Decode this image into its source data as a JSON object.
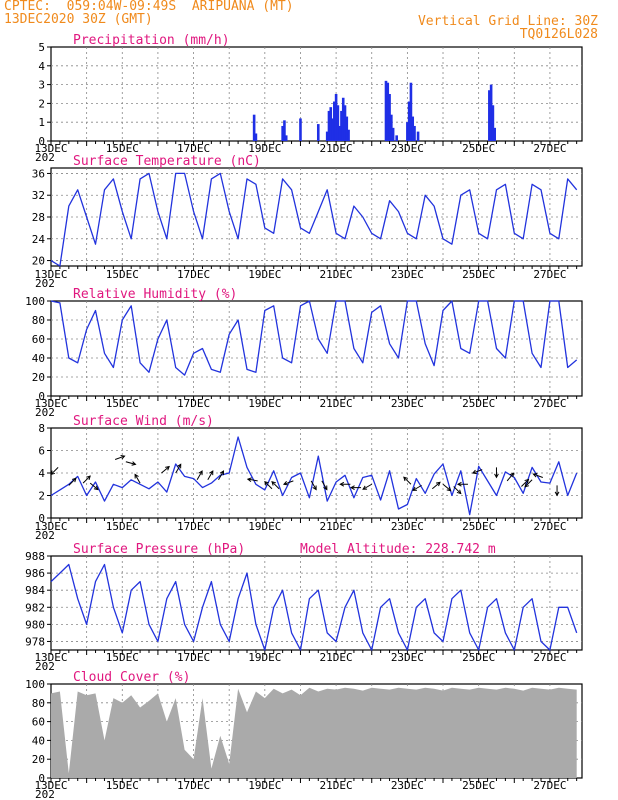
{
  "header": {
    "line1": "CPTEC:  059:04W-09:49S  ARIPUANA (MT)",
    "line2": "13DEC2020 30Z (GMT)",
    "grid_note": "Vertical Grid Line: 30Z",
    "code": "TQ0126L028"
  },
  "x_labels": [
    "13DEC",
    "15DEC",
    "17DEC",
    "19DEC",
    "21DEC",
    "23DEC",
    "25DEC",
    "27DEC"
  ],
  "year_label": "202",
  "colors": {
    "header": "#f08a1c",
    "title": "#e0177f",
    "line": "#2233dd",
    "bar": "#1f2fe6",
    "cloud": "#aaaaaa"
  },
  "chart_data": [
    {
      "id": "precip",
      "type": "bar",
      "title": "Precipitation (mm/h)",
      "ylim": [
        0,
        5
      ],
      "yticks": [
        0,
        1,
        2,
        3,
        4,
        5
      ],
      "x_unit": "days since 13DEC 06Z",
      "bars": [
        [
          5.7,
          1.4
        ],
        [
          5.75,
          0.4
        ],
        [
          6.5,
          0.8
        ],
        [
          6.55,
          1.1
        ],
        [
          6.6,
          0.3
        ],
        [
          7.0,
          1.2
        ],
        [
          7.5,
          0.9
        ],
        [
          7.75,
          0.5
        ],
        [
          7.8,
          1.6
        ],
        [
          7.85,
          1.8
        ],
        [
          7.9,
          1.2
        ],
        [
          7.95,
          2.1
        ],
        [
          8.0,
          2.5
        ],
        [
          8.05,
          1.9
        ],
        [
          8.1,
          0.8
        ],
        [
          8.15,
          1.6
        ],
        [
          8.2,
          2.3
        ],
        [
          8.25,
          1.9
        ],
        [
          8.3,
          1.3
        ],
        [
          8.35,
          0.6
        ],
        [
          9.4,
          3.2
        ],
        [
          9.45,
          3.1
        ],
        [
          9.5,
          2.5
        ],
        [
          9.55,
          1.4
        ],
        [
          9.6,
          0.7
        ],
        [
          9.7,
          0.3
        ],
        [
          10.0,
          1.0
        ],
        [
          10.05,
          2.1
        ],
        [
          10.1,
          3.1
        ],
        [
          10.15,
          1.3
        ],
        [
          10.2,
          0.8
        ],
        [
          10.3,
          0.5
        ],
        [
          12.3,
          2.7
        ],
        [
          12.35,
          3.0
        ],
        [
          12.4,
          1.9
        ],
        [
          12.45,
          0.7
        ]
      ]
    },
    {
      "id": "temp",
      "type": "line",
      "title": "Surface Temperature (nC)",
      "ylim": [
        19,
        37
      ],
      "yticks": [
        20,
        24,
        28,
        32,
        36
      ],
      "x": [
        0,
        0.25,
        0.5,
        0.75,
        1,
        1.25,
        1.5,
        1.75,
        2,
        2.25,
        2.5,
        2.75,
        3,
        3.25,
        3.5,
        3.75,
        4,
        4.25,
        4.5,
        4.75,
        5,
        5.25,
        5.5,
        5.75,
        6,
        6.25,
        6.5,
        6.75,
        7,
        7.25,
        7.5,
        7.75,
        8,
        8.25,
        8.5,
        8.75,
        9,
        9.25,
        9.5,
        9.75,
        10,
        10.25,
        10.5,
        10.75,
        11,
        11.25,
        11.5,
        11.75,
        12,
        12.25,
        12.5,
        12.75,
        13,
        13.25,
        13.5,
        13.75,
        14,
        14.25,
        14.5,
        14.75
      ],
      "values": [
        20,
        19,
        30,
        33,
        28,
        23,
        33,
        35,
        29,
        24,
        35,
        36,
        29,
        24,
        36,
        36,
        29,
        24,
        35,
        36,
        29,
        24,
        35,
        34,
        26,
        25,
        35,
        33,
        26,
        25,
        29,
        33,
        25,
        24,
        30,
        28,
        25,
        24,
        31,
        29,
        25,
        24,
        32,
        30,
        24,
        23,
        32,
        33,
        25,
        24,
        33,
        34,
        25,
        24,
        34,
        33,
        25,
        24,
        35,
        33
      ]
    },
    {
      "id": "rh",
      "type": "line",
      "title": "Relative Humidity (%)",
      "ylim": [
        0,
        100
      ],
      "yticks": [
        0,
        20,
        40,
        60,
        80,
        100
      ],
      "x": [
        0,
        0.25,
        0.5,
        0.75,
        1,
        1.25,
        1.5,
        1.75,
        2,
        2.25,
        2.5,
        2.75,
        3,
        3.25,
        3.5,
        3.75,
        4,
        4.25,
        4.5,
        4.75,
        5,
        5.25,
        5.5,
        5.75,
        6,
        6.25,
        6.5,
        6.75,
        7,
        7.25,
        7.5,
        7.75,
        8,
        8.25,
        8.5,
        8.75,
        9,
        9.25,
        9.5,
        9.75,
        10,
        10.25,
        10.5,
        10.75,
        11,
        11.25,
        11.5,
        11.75,
        12,
        12.25,
        12.5,
        12.75,
        13,
        13.25,
        13.5,
        13.75,
        14,
        14.25,
        14.5,
        14.75
      ],
      "values": [
        100,
        98,
        40,
        35,
        70,
        90,
        45,
        30,
        80,
        95,
        35,
        25,
        60,
        80,
        30,
        22,
        45,
        50,
        28,
        25,
        65,
        80,
        28,
        25,
        90,
        95,
        40,
        35,
        95,
        100,
        60,
        45,
        100,
        100,
        50,
        35,
        88,
        95,
        55,
        40,
        100,
        100,
        55,
        32,
        90,
        100,
        50,
        45,
        100,
        100,
        50,
        40,
        100,
        100,
        45,
        30,
        100,
        100,
        30,
        38
      ]
    },
    {
      "id": "wind",
      "type": "line",
      "title": "Surface Wind (m/s)",
      "ylim": [
        0,
        8
      ],
      "yticks": [
        0,
        2,
        4,
        6,
        8
      ],
      "x": [
        0,
        0.25,
        0.5,
        0.75,
        1,
        1.25,
        1.5,
        1.75,
        2,
        2.25,
        2.5,
        2.75,
        3,
        3.25,
        3.5,
        3.75,
        4,
        4.25,
        4.5,
        4.75,
        5,
        5.25,
        5.5,
        5.75,
        6,
        6.25,
        6.5,
        6.75,
        7,
        7.25,
        7.5,
        7.75,
        8,
        8.25,
        8.5,
        8.75,
        9,
        9.25,
        9.5,
        9.75,
        10,
        10.25,
        10.5,
        10.75,
        11,
        11.25,
        11.5,
        11.75,
        12,
        12.25,
        12.5,
        12.75,
        13,
        13.25,
        13.5,
        13.75,
        14,
        14.25,
        14.5,
        14.75
      ],
      "values": [
        2,
        2.5,
        3,
        3.7,
        2,
        3.2,
        1.5,
        3.0,
        2.7,
        3.4,
        3,
        2.6,
        3.2,
        2.3,
        4.8,
        3.7,
        3.5,
        2.7,
        3.1,
        3.8,
        4,
        7.2,
        4.5,
        3.0,
        2.5,
        4.2,
        2.0,
        3.6,
        4,
        1.8,
        5.5,
        1.5,
        3.2,
        3.8,
        1.8,
        3.6,
        3.8,
        1.6,
        4.2,
        0.8,
        1.2,
        3.5,
        2.2,
        3.9,
        4.8,
        2.0,
        4.2,
        0.3,
        4.6,
        3.3,
        2.0,
        4.1,
        3.6,
        2.2,
        4.5,
        3.2,
        3.1,
        5.0,
        2.0,
        4.0
      ],
      "arrows": [
        [
          0.2,
          4.5,
          225
        ],
        [
          0.5,
          2.9,
          45
        ],
        [
          0.9,
          3.1,
          45
        ],
        [
          1.1,
          3.1,
          320
        ],
        [
          1.8,
          5.2,
          20
        ],
        [
          2.1,
          5.0,
          345
        ],
        [
          2.5,
          3.1,
          120
        ],
        [
          3.1,
          4.0,
          40
        ],
        [
          3.5,
          4.0,
          60
        ],
        [
          4.1,
          3.4,
          60
        ],
        [
          4.4,
          3.4,
          60
        ],
        [
          4.7,
          3.4,
          60
        ],
        [
          5.8,
          3.3,
          170
        ],
        [
          6.2,
          2.6,
          135
        ],
        [
          6.4,
          2.6,
          135
        ],
        [
          6.8,
          3.3,
          200
        ],
        [
          7.3,
          3.3,
          300
        ],
        [
          7.6,
          3.3,
          300
        ],
        [
          8.4,
          3.0,
          180
        ],
        [
          8.7,
          2.7,
          180
        ],
        [
          9.0,
          3.0,
          210
        ],
        [
          10.1,
          3.0,
          135
        ],
        [
          10.4,
          2.9,
          210
        ],
        [
          10.7,
          2.6,
          40
        ],
        [
          11.0,
          3.0,
          320
        ],
        [
          11.3,
          2.8,
          315
        ],
        [
          11.7,
          3.0,
          180
        ],
        [
          12.1,
          4.3,
          200
        ],
        [
          12.5,
          4.5,
          270
        ],
        [
          12.8,
          3.3,
          50
        ],
        [
          13.2,
          2.8,
          45
        ],
        [
          13.5,
          3.4,
          225
        ],
        [
          13.8,
          3.6,
          160
        ],
        [
          14.2,
          2.9,
          270
        ]
      ]
    },
    {
      "id": "pres",
      "type": "line",
      "title": "Surface Pressure (hPa)",
      "subtitle": "Model Altitude: 228.742 m",
      "ylim": [
        977,
        988
      ],
      "yticks": [
        978,
        980,
        982,
        984,
        986,
        988
      ],
      "x": [
        0,
        0.25,
        0.5,
        0.75,
        1,
        1.25,
        1.5,
        1.75,
        2,
        2.25,
        2.5,
        2.75,
        3,
        3.25,
        3.5,
        3.75,
        4,
        4.25,
        4.5,
        4.75,
        5,
        5.25,
        5.5,
        5.75,
        6,
        6.25,
        6.5,
        6.75,
        7,
        7.25,
        7.5,
        7.75,
        8,
        8.25,
        8.5,
        8.75,
        9,
        9.25,
        9.5,
        9.75,
        10,
        10.25,
        10.5,
        10.75,
        11,
        11.25,
        11.5,
        11.75,
        12,
        12.25,
        12.5,
        12.75,
        13,
        13.25,
        13.5,
        13.75,
        14,
        14.25,
        14.5,
        14.75
      ],
      "values": [
        985,
        986,
        987,
        983,
        980,
        985,
        987,
        982,
        979,
        984,
        985,
        980,
        978,
        983,
        985,
        980,
        978,
        982,
        985,
        980,
        978,
        983,
        986,
        980,
        977,
        982,
        984,
        979,
        977,
        983,
        984,
        979,
        978,
        982,
        984,
        979,
        977,
        982,
        983,
        979,
        977,
        982,
        983,
        979,
        978,
        983,
        984,
        979,
        977,
        982,
        983,
        979,
        977,
        982,
        983,
        978,
        977,
        982,
        982,
        979
      ]
    },
    {
      "id": "cloud",
      "type": "area",
      "title": "Cloud Cover (%)",
      "ylim": [
        0,
        100
      ],
      "yticks": [
        0,
        20,
        40,
        60,
        80,
        100
      ],
      "x": [
        0,
        0.25,
        0.5,
        0.75,
        1,
        1.25,
        1.5,
        1.75,
        2,
        2.25,
        2.5,
        2.75,
        3,
        3.25,
        3.5,
        3.75,
        4,
        4.25,
        4.5,
        4.75,
        5,
        5.25,
        5.5,
        5.75,
        6,
        6.25,
        6.5,
        6.75,
        7,
        7.25,
        7.5,
        7.75,
        8,
        8.25,
        8.5,
        8.75,
        9,
        9.25,
        9.5,
        9.75,
        10,
        10.25,
        10.5,
        10.75,
        11,
        11.25,
        11.5,
        11.75,
        12,
        12.25,
        12.5,
        12.75,
        13,
        13.25,
        13.5,
        13.75,
        14,
        14.25,
        14.5,
        14.75
      ],
      "values": [
        90,
        92,
        5,
        92,
        88,
        90,
        40,
        85,
        80,
        88,
        75,
        82,
        90,
        60,
        85,
        30,
        20,
        85,
        10,
        45,
        15,
        95,
        70,
        92,
        85,
        95,
        90,
        94,
        88,
        96,
        92,
        95,
        94,
        96,
        95,
        93,
        96,
        95,
        94,
        96,
        95,
        94,
        96,
        95,
        93,
        96,
        95,
        94,
        96,
        95,
        94,
        96,
        95,
        93,
        96,
        95,
        94,
        96,
        95,
        94
      ]
    }
  ]
}
